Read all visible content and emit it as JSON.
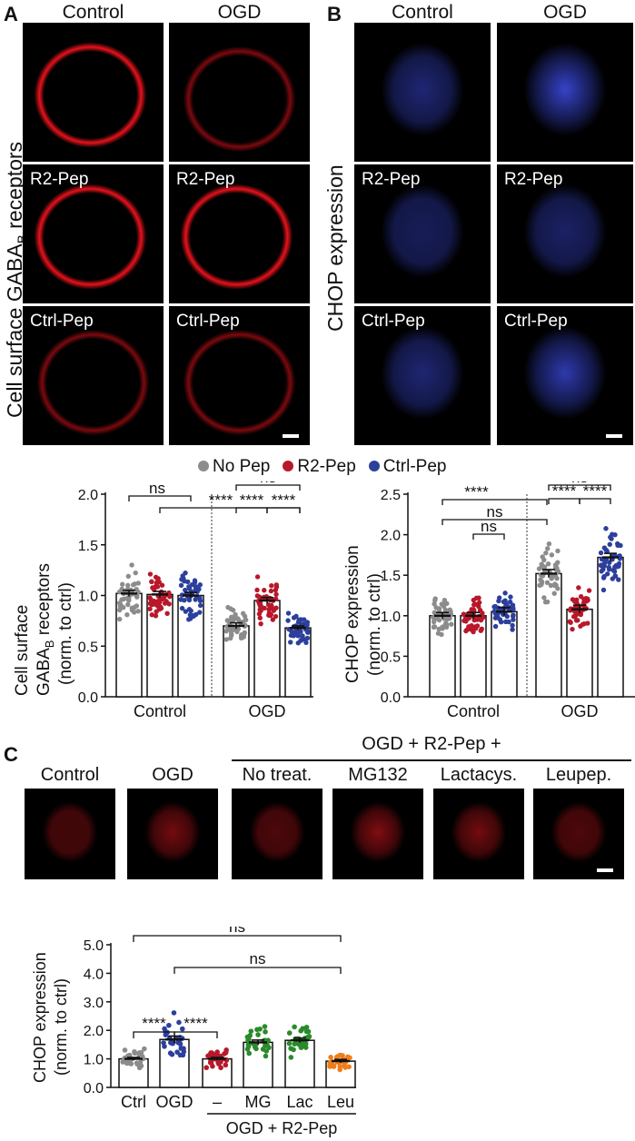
{
  "panelA": {
    "letter": "A",
    "col_headers": [
      "Control",
      "OGD"
    ],
    "side_label": "Cell surface GABA",
    "side_label_sub": "B",
    "side_label_end": " receptors",
    "row_labels": [
      "",
      "R2-Pep",
      "Ctrl-Pep"
    ],
    "stain_color": "#e8121c"
  },
  "panelB": {
    "letter": "B",
    "col_headers": [
      "Control",
      "OGD"
    ],
    "side_label": "CHOP expression",
    "row_labels": [
      "",
      "R2-Pep",
      "Ctrl-Pep"
    ],
    "stain_color": "#3a48d8"
  },
  "legend": {
    "items": [
      {
        "name": "No Pep",
        "color": "#8c8c8c"
      },
      {
        "name": "R2-Pep",
        "color": "#b8182a"
      },
      {
        "name": "Ctrl-Pep",
        "color": "#2d3f9c"
      }
    ]
  },
  "panelC": {
    "letter": "C",
    "group_header": "OGD + R2-Pep +",
    "col_headers": [
      "Control",
      "OGD",
      "No treat.",
      "MG132",
      "Lactacys.",
      "Leupep."
    ],
    "stain_color": "#c0141a"
  },
  "chart_data": [
    {
      "type": "bar",
      "ylabel_line1": "Cell surface",
      "ylabel_line2": "GABA",
      "ylabel_line2_sub": "B",
      "ylabel_line2_end": " receptors",
      "ylabel_line3": "(norm. to ctrl)",
      "ylim": [
        0,
        2.0
      ],
      "yticks": [
        "0.0",
        "0.5",
        "1.0",
        "1.5",
        "2.0"
      ],
      "groups": [
        "Control",
        "OGD"
      ],
      "series": [
        {
          "name": "No Pep",
          "color": "#8c8c8c",
          "values": [
            1.02,
            0.7
          ],
          "sem": [
            0.03,
            0.03
          ]
        },
        {
          "name": "R2-Pep",
          "color": "#b8182a",
          "values": [
            1.01,
            0.95
          ],
          "sem": [
            0.03,
            0.03
          ]
        },
        {
          "name": "Ctrl-Pep",
          "color": "#2d3f9c",
          "values": [
            1.0,
            0.68
          ],
          "sem": [
            0.03,
            0.02
          ]
        }
      ],
      "annotations": [
        "ns",
        "****",
        "ns",
        "****",
        "****"
      ]
    },
    {
      "type": "bar",
      "ylabel_line1": "CHOP expression",
      "ylabel_line2": "(norm. to ctrl)",
      "ylim": [
        0,
        2.5
      ],
      "yticks": [
        "0.0",
        "0.5",
        "1.0",
        "1.5",
        "2.0",
        "2.5"
      ],
      "groups": [
        "Control",
        "OGD"
      ],
      "series": [
        {
          "name": "No Pep",
          "color": "#8c8c8c",
          "values": [
            1.0,
            1.52
          ],
          "sem": [
            0.04,
            0.05
          ]
        },
        {
          "name": "R2-Pep",
          "color": "#b8182a",
          "values": [
            1.0,
            1.08
          ],
          "sem": [
            0.04,
            0.05
          ]
        },
        {
          "name": "Ctrl-Pep",
          "color": "#2d3f9c",
          "values": [
            1.05,
            1.72
          ],
          "sem": [
            0.05,
            0.05
          ]
        }
      ],
      "annotations": [
        "****",
        "ns",
        "ns",
        "ns",
        "****",
        "****"
      ]
    },
    {
      "type": "bar",
      "ylabel_line1": "CHOP expression",
      "ylabel_line2": "(norm. to ctrl)",
      "ylim": [
        0,
        5.0
      ],
      "yticks": [
        "0.0",
        "1.0",
        "2.0",
        "3.0",
        "4.0",
        "5.0"
      ],
      "categories": [
        "Ctrl",
        "OGD",
        "–",
        "MG",
        "Lac",
        "Leu"
      ],
      "group_label": "OGD + R2-Pep",
      "values": [
        1.0,
        1.68,
        1.0,
        1.58,
        1.65,
        0.92
      ],
      "sem": [
        0.05,
        0.12,
        0.05,
        0.08,
        0.08,
        0.06
      ],
      "colors": [
        "#8c8c8c",
        "#2d3f9c",
        "#b8182a",
        "#2a8a2a",
        "#2a8a2a",
        "#ef7d1a"
      ],
      "annotations": [
        "ns",
        "ns",
        "****",
        "****"
      ]
    }
  ]
}
